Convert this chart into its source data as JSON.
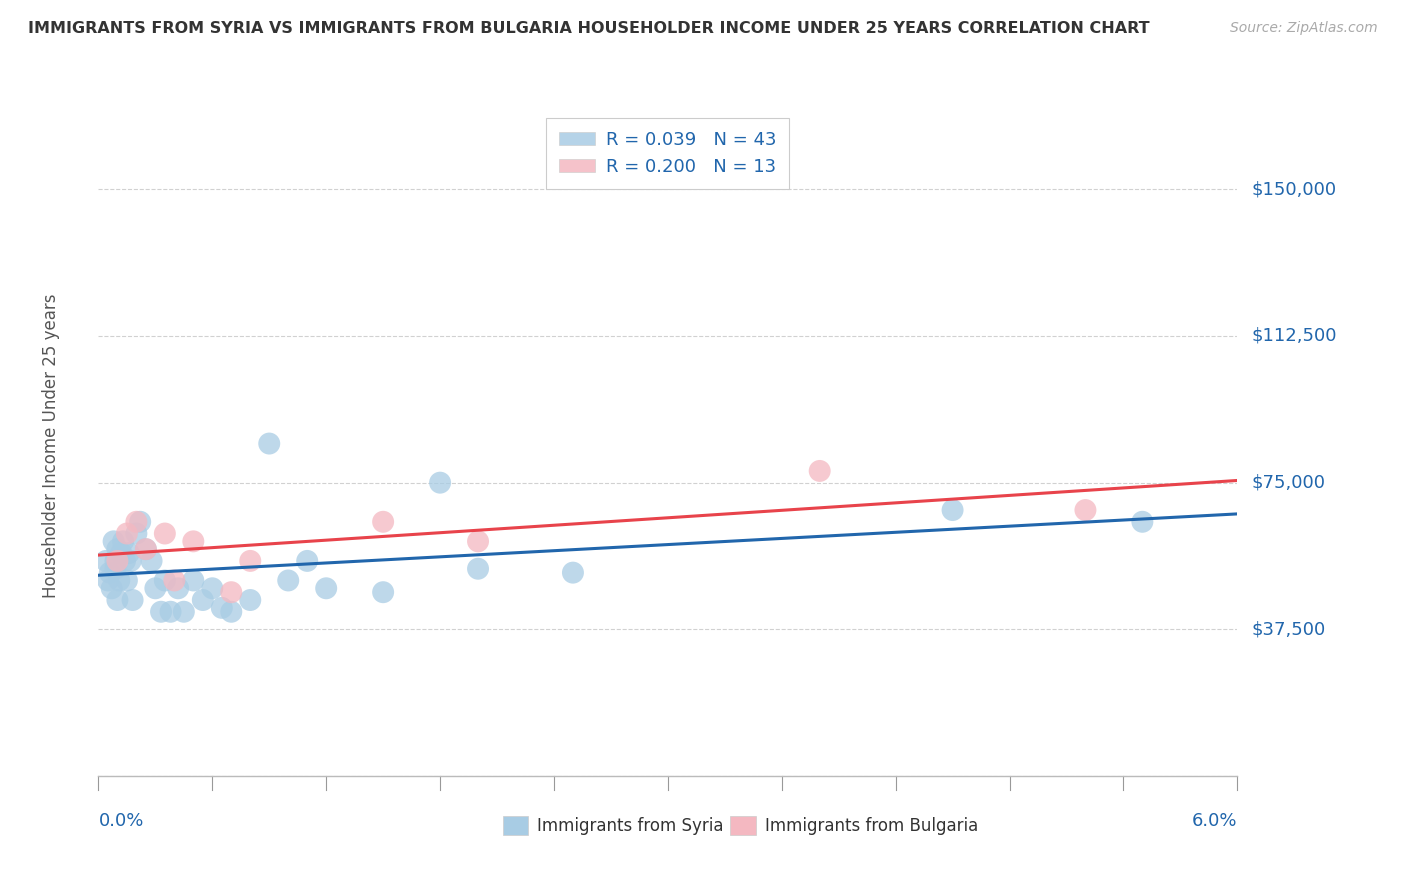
{
  "title": "IMMIGRANTS FROM SYRIA VS IMMIGRANTS FROM BULGARIA HOUSEHOLDER INCOME UNDER 25 YEARS CORRELATION CHART",
  "source": "Source: ZipAtlas.com",
  "ylabel": "Householder Income Under 25 years",
  "xlim": [
    0.0,
    6.0
  ],
  "ylim": [
    0,
    168750
  ],
  "yticks": [
    0,
    37500,
    75000,
    112500,
    150000
  ],
  "ytick_labels": [
    "",
    "$37,500",
    "$75,000",
    "$112,500",
    "$150,000"
  ],
  "legend_syria_r": "R = 0.039",
  "legend_syria_n": "N = 43",
  "legend_bulgaria_r": "R = 0.200",
  "legend_bulgaria_n": "N = 13",
  "syria_color": "#a8cce4",
  "bulgaria_color": "#f4b8c1",
  "syria_line_color": "#2166ac",
  "bulgaria_line_color": "#e8434b",
  "background_color": "#ffffff",
  "grid_color": "#cccccc",
  "syria_x": [
    0.04,
    0.05,
    0.06,
    0.07,
    0.08,
    0.09,
    0.09,
    0.1,
    0.1,
    0.11,
    0.12,
    0.13,
    0.14,
    0.15,
    0.16,
    0.17,
    0.18,
    0.2,
    0.22,
    0.25,
    0.28,
    0.3,
    0.33,
    0.35,
    0.38,
    0.42,
    0.45,
    0.5,
    0.55,
    0.6,
    0.65,
    0.7,
    0.8,
    0.9,
    1.0,
    1.1,
    1.2,
    1.5,
    1.8,
    2.0,
    2.5,
    4.5,
    5.5
  ],
  "syria_y": [
    55000,
    50000,
    52000,
    48000,
    60000,
    53000,
    55000,
    58000,
    45000,
    50000,
    57000,
    60000,
    55000,
    50000,
    57000,
    55000,
    45000,
    62000,
    65000,
    58000,
    55000,
    48000,
    42000,
    50000,
    42000,
    48000,
    42000,
    50000,
    45000,
    48000,
    43000,
    42000,
    45000,
    85000,
    50000,
    55000,
    48000,
    47000,
    75000,
    53000,
    52000,
    68000,
    65000
  ],
  "bulgaria_x": [
    0.1,
    0.15,
    0.2,
    0.25,
    0.35,
    0.4,
    0.5,
    0.7,
    0.8,
    1.5,
    2.0,
    3.8,
    5.2
  ],
  "bulgaria_y": [
    55000,
    62000,
    65000,
    58000,
    62000,
    50000,
    60000,
    47000,
    55000,
    65000,
    60000,
    78000,
    68000
  ],
  "title_fontsize": 11.5,
  "source_fontsize": 10,
  "axis_label_fontsize": 12,
  "tick_label_fontsize": 13,
  "legend_fontsize": 13
}
